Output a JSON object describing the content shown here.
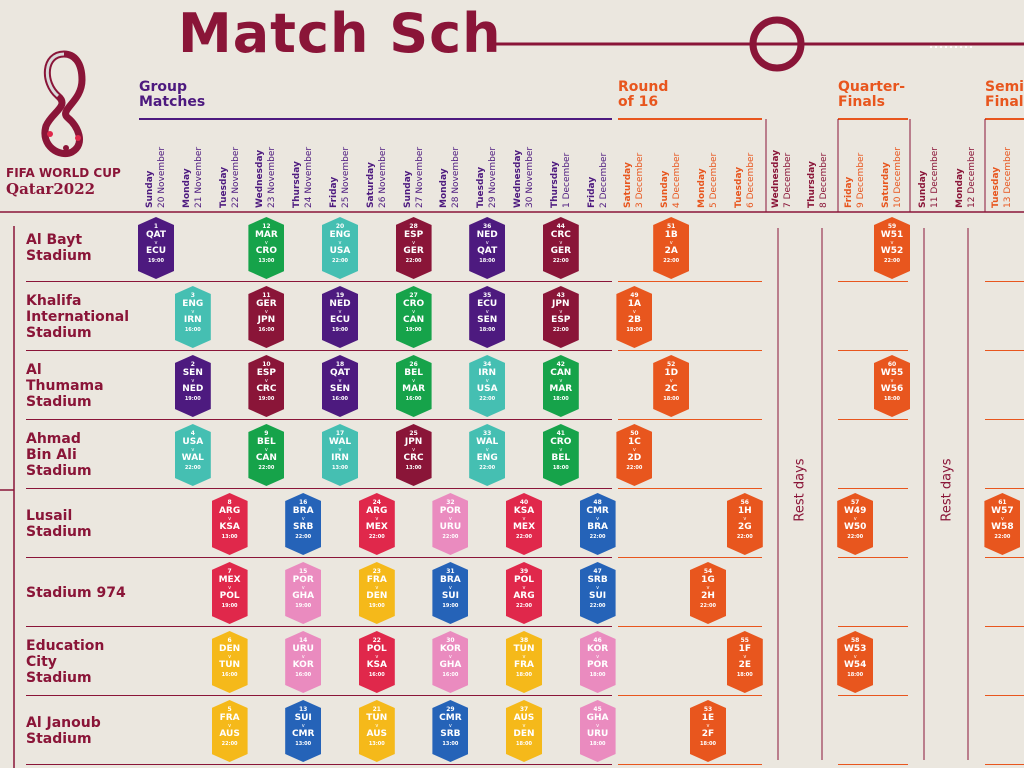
{
  "title": "Match Sch",
  "logo": {
    "line1": "FIFA WORLD CUP",
    "line2": "Qatar2022"
  },
  "phases": [
    {
      "label": "Group\nMatches",
      "color": "#4d1a7f"
    },
    {
      "label": "Round\nof 16",
      "color": "#e8561e"
    },
    {
      "label": "Quarter-\nFinals",
      "color": "#e8561e"
    },
    {
      "label": "Semi\nFinal",
      "color": "#e8561e"
    }
  ],
  "days": [
    {
      "wd": "Sunday",
      "date": "20 November"
    },
    {
      "wd": "Monday",
      "date": "21 November"
    },
    {
      "wd": "Tuesday",
      "date": "22 November"
    },
    {
      "wd": "Wednesday",
      "date": "23 November"
    },
    {
      "wd": "Thursday",
      "date": "24 November"
    },
    {
      "wd": "Friday",
      "date": "25 November"
    },
    {
      "wd": "Saturday",
      "date": "26 November"
    },
    {
      "wd": "Sunday",
      "date": "27 November"
    },
    {
      "wd": "Monday",
      "date": "28 November"
    },
    {
      "wd": "Tuesday",
      "date": "29 November"
    },
    {
      "wd": "Wednesday",
      "date": "30 November"
    },
    {
      "wd": "Thursday",
      "date": "1 December"
    },
    {
      "wd": "Friday",
      "date": "2 December"
    },
    {
      "wd": "Saturday",
      "date": "3 December"
    },
    {
      "wd": "Sunday",
      "date": "4 December"
    },
    {
      "wd": "Monday",
      "date": "5 December"
    },
    {
      "wd": "Tuesday",
      "date": "6 December"
    },
    {
      "wd": "Wednesday",
      "date": "7 December"
    },
    {
      "wd": "Thursday",
      "date": "8 December"
    },
    {
      "wd": "Friday",
      "date": "9 December"
    },
    {
      "wd": "Saturday",
      "date": "10 December"
    },
    {
      "wd": "Sunday",
      "date": "11 December"
    },
    {
      "wd": "Monday",
      "date": "12 December"
    },
    {
      "wd": "Tuesday",
      "date": "13 December"
    }
  ],
  "venues": [
    "Al Bayt\nStadium",
    "Khalifa\nInternational\nStadium",
    "Al\nThumama\nStadium",
    "Ahmad\nBin Ali\nStadium",
    "Lusail\nStadium",
    "Stadium 974",
    "Education\nCity\nStadium",
    "Al Janoub\nStadium"
  ],
  "rest_label": "Rest days",
  "versus": "v",
  "colors": {
    "maroon": "#8a1538",
    "purple": "#4d1a7f",
    "orange": "#e8561e"
  },
  "matches": [
    {
      "no": "1",
      "a": "QAT",
      "b": "ECU",
      "time": "19:00",
      "day": 0,
      "venue": 0,
      "color": "#4d1a7f"
    },
    {
      "no": "12",
      "a": "MAR",
      "b": "CRO",
      "time": "13:00",
      "day": 3,
      "venue": 0,
      "color": "#16a34a"
    },
    {
      "no": "20",
      "a": "ENG",
      "b": "USA",
      "time": "22:00",
      "day": 5,
      "venue": 0,
      "color": "#45bfb2"
    },
    {
      "no": "28",
      "a": "ESP",
      "b": "GER",
      "time": "22:00",
      "day": 7,
      "venue": 0,
      "color": "#8a1538"
    },
    {
      "no": "36",
      "a": "NED",
      "b": "QAT",
      "time": "18:00",
      "day": 9,
      "venue": 0,
      "color": "#4d1a7f"
    },
    {
      "no": "44",
      "a": "CRC",
      "b": "GER",
      "time": "22:00",
      "day": 11,
      "venue": 0,
      "color": "#8a1538"
    },
    {
      "no": "51",
      "a": "1B",
      "b": "2A",
      "time": "22:00",
      "day": 14,
      "venue": 0,
      "color": "#e8561e"
    },
    {
      "no": "59",
      "a": "W51",
      "b": "W52",
      "time": "22:00",
      "day": 20,
      "venue": 0,
      "color": "#e8561e"
    },
    {
      "no": "3",
      "a": "ENG",
      "b": "IRN",
      "time": "16:00",
      "day": 1,
      "venue": 1,
      "color": "#45bfb2"
    },
    {
      "no": "11",
      "a": "GER",
      "b": "JPN",
      "time": "16:00",
      "day": 3,
      "venue": 1,
      "color": "#8a1538"
    },
    {
      "no": "19",
      "a": "NED",
      "b": "ECU",
      "time": "19:00",
      "day": 5,
      "venue": 1,
      "color": "#4d1a7f"
    },
    {
      "no": "27",
      "a": "CRO",
      "b": "CAN",
      "time": "19:00",
      "day": 7,
      "venue": 1,
      "color": "#16a34a"
    },
    {
      "no": "35",
      "a": "ECU",
      "b": "SEN",
      "time": "18:00",
      "day": 9,
      "venue": 1,
      "color": "#4d1a7f"
    },
    {
      "no": "43",
      "a": "JPN",
      "b": "ESP",
      "time": "22:00",
      "day": 11,
      "venue": 1,
      "color": "#8a1538"
    },
    {
      "no": "49",
      "a": "1A",
      "b": "2B",
      "time": "18:00",
      "day": 13,
      "venue": 1,
      "color": "#e8561e"
    },
    {
      "no": "2",
      "a": "SEN",
      "b": "NED",
      "time": "19:00",
      "day": 1,
      "venue": 2,
      "color": "#4d1a7f"
    },
    {
      "no": "10",
      "a": "ESP",
      "b": "CRC",
      "time": "19:00",
      "day": 3,
      "venue": 2,
      "color": "#8a1538"
    },
    {
      "no": "18",
      "a": "QAT",
      "b": "SEN",
      "time": "16:00",
      "day": 5,
      "venue": 2,
      "color": "#4d1a7f"
    },
    {
      "no": "26",
      "a": "BEL",
      "b": "MAR",
      "time": "16:00",
      "day": 7,
      "venue": 2,
      "color": "#16a34a"
    },
    {
      "no": "34",
      "a": "IRN",
      "b": "USA",
      "time": "22:00",
      "day": 9,
      "venue": 2,
      "color": "#45bfb2"
    },
    {
      "no": "42",
      "a": "CAN",
      "b": "MAR",
      "time": "18:00",
      "day": 11,
      "venue": 2,
      "color": "#16a34a"
    },
    {
      "no": "52",
      "a": "1D",
      "b": "2C",
      "time": "18:00",
      "day": 14,
      "venue": 2,
      "color": "#e8561e"
    },
    {
      "no": "60",
      "a": "W55",
      "b": "W56",
      "time": "18:00",
      "day": 20,
      "venue": 2,
      "color": "#e8561e"
    },
    {
      "no": "4",
      "a": "USA",
      "b": "WAL",
      "time": "22:00",
      "day": 1,
      "venue": 3,
      "color": "#45bfb2"
    },
    {
      "no": "9",
      "a": "BEL",
      "b": "CAN",
      "time": "22:00",
      "day": 3,
      "venue": 3,
      "color": "#16a34a"
    },
    {
      "no": "17",
      "a": "WAL",
      "b": "IRN",
      "time": "13:00",
      "day": 5,
      "venue": 3,
      "color": "#45bfb2"
    },
    {
      "no": "25",
      "a": "JPN",
      "b": "CRC",
      "time": "13:00",
      "day": 7,
      "venue": 3,
      "color": "#8a1538"
    },
    {
      "no": "33",
      "a": "WAL",
      "b": "ENG",
      "time": "22:00",
      "day": 9,
      "venue": 3,
      "color": "#45bfb2"
    },
    {
      "no": "41",
      "a": "CRO",
      "b": "BEL",
      "time": "18:00",
      "day": 11,
      "venue": 3,
      "color": "#16a34a"
    },
    {
      "no": "50",
      "a": "1C",
      "b": "2D",
      "time": "22:00",
      "day": 13,
      "venue": 3,
      "color": "#e8561e"
    },
    {
      "no": "8",
      "a": "ARG",
      "b": "KSA",
      "time": "13:00",
      "day": 2,
      "venue": 4,
      "color": "#e0284b"
    },
    {
      "no": "16",
      "a": "BRA",
      "b": "SRB",
      "time": "22:00",
      "day": 4,
      "venue": 4,
      "color": "#2563b8"
    },
    {
      "no": "24",
      "a": "ARG",
      "b": "MEX",
      "time": "22:00",
      "day": 6,
      "venue": 4,
      "color": "#e0284b"
    },
    {
      "no": "32",
      "a": "POR",
      "b": "URU",
      "time": "22:00",
      "day": 8,
      "venue": 4,
      "color": "#ea8bbf"
    },
    {
      "no": "40",
      "a": "KSA",
      "b": "MEX",
      "time": "22:00",
      "day": 10,
      "venue": 4,
      "color": "#e0284b"
    },
    {
      "no": "48",
      "a": "CMR",
      "b": "BRA",
      "time": "22:00",
      "day": 12,
      "venue": 4,
      "color": "#2563b8"
    },
    {
      "no": "56",
      "a": "1H",
      "b": "2G",
      "time": "22:00",
      "day": 16,
      "venue": 4,
      "color": "#e8561e"
    },
    {
      "no": "57",
      "a": "W49",
      "b": "W50",
      "time": "22:00",
      "day": 19,
      "venue": 4,
      "color": "#e8561e"
    },
    {
      "no": "61",
      "a": "W57",
      "b": "W58",
      "time": "22:00",
      "day": 23,
      "venue": 4,
      "color": "#e8561e"
    },
    {
      "no": "7",
      "a": "MEX",
      "b": "POL",
      "time": "19:00",
      "day": 2,
      "venue": 5,
      "color": "#e0284b"
    },
    {
      "no": "15",
      "a": "POR",
      "b": "GHA",
      "time": "19:00",
      "day": 4,
      "venue": 5,
      "color": "#ea8bbf"
    },
    {
      "no": "23",
      "a": "FRA",
      "b": "DEN",
      "time": "19:00",
      "day": 6,
      "venue": 5,
      "color": "#f5b91a"
    },
    {
      "no": "31",
      "a": "BRA",
      "b": "SUI",
      "time": "19:00",
      "day": 8,
      "venue": 5,
      "color": "#2563b8"
    },
    {
      "no": "39",
      "a": "POL",
      "b": "ARG",
      "time": "22:00",
      "day": 10,
      "venue": 5,
      "color": "#e0284b"
    },
    {
      "no": "47",
      "a": "SRB",
      "b": "SUI",
      "time": "22:00",
      "day": 12,
      "venue": 5,
      "color": "#2563b8"
    },
    {
      "no": "54",
      "a": "1G",
      "b": "2H",
      "time": "22:00",
      "day": 15,
      "venue": 5,
      "color": "#e8561e"
    },
    {
      "no": "6",
      "a": "DEN",
      "b": "TUN",
      "time": "16:00",
      "day": 2,
      "venue": 6,
      "color": "#f5b91a"
    },
    {
      "no": "14",
      "a": "URU",
      "b": "KOR",
      "time": "16:00",
      "day": 4,
      "venue": 6,
      "color": "#ea8bbf"
    },
    {
      "no": "22",
      "a": "POL",
      "b": "KSA",
      "time": "16:00",
      "day": 6,
      "venue": 6,
      "color": "#e0284b"
    },
    {
      "no": "30",
      "a": "KOR",
      "b": "GHA",
      "time": "16:00",
      "day": 8,
      "venue": 6,
      "color": "#ea8bbf"
    },
    {
      "no": "38",
      "a": "TUN",
      "b": "FRA",
      "time": "18:00",
      "day": 10,
      "venue": 6,
      "color": "#f5b91a"
    },
    {
      "no": "46",
      "a": "KOR",
      "b": "POR",
      "time": "18:00",
      "day": 12,
      "venue": 6,
      "color": "#ea8bbf"
    },
    {
      "no": "55",
      "a": "1F",
      "b": "2E",
      "time": "18:00",
      "day": 16,
      "venue": 6,
      "color": "#e8561e"
    },
    {
      "no": "58",
      "a": "W53",
      "b": "W54",
      "time": "18:00",
      "day": 19,
      "venue": 6,
      "color": "#e8561e"
    },
    {
      "no": "5",
      "a": "FRA",
      "b": "AUS",
      "time": "22:00",
      "day": 2,
      "venue": 7,
      "color": "#f5b91a"
    },
    {
      "no": "13",
      "a": "SUI",
      "b": "CMR",
      "time": "13:00",
      "day": 4,
      "venue": 7,
      "color": "#2563b8"
    },
    {
      "no": "21",
      "a": "TUN",
      "b": "AUS",
      "time": "13:00",
      "day": 6,
      "venue": 7,
      "color": "#f5b91a"
    },
    {
      "no": "29",
      "a": "CMR",
      "b": "SRB",
      "time": "13:00",
      "day": 8,
      "venue": 7,
      "color": "#2563b8"
    },
    {
      "no": "37",
      "a": "AUS",
      "b": "DEN",
      "time": "18:00",
      "day": 10,
      "venue": 7,
      "color": "#f5b91a"
    },
    {
      "no": "45",
      "a": "GHA",
      "b": "URU",
      "time": "18:00",
      "day": 12,
      "venue": 7,
      "color": "#ea8bbf"
    },
    {
      "no": "53",
      "a": "1E",
      "b": "2F",
      "time": "18:00",
      "day": 15,
      "venue": 7,
      "color": "#e8561e"
    }
  ]
}
